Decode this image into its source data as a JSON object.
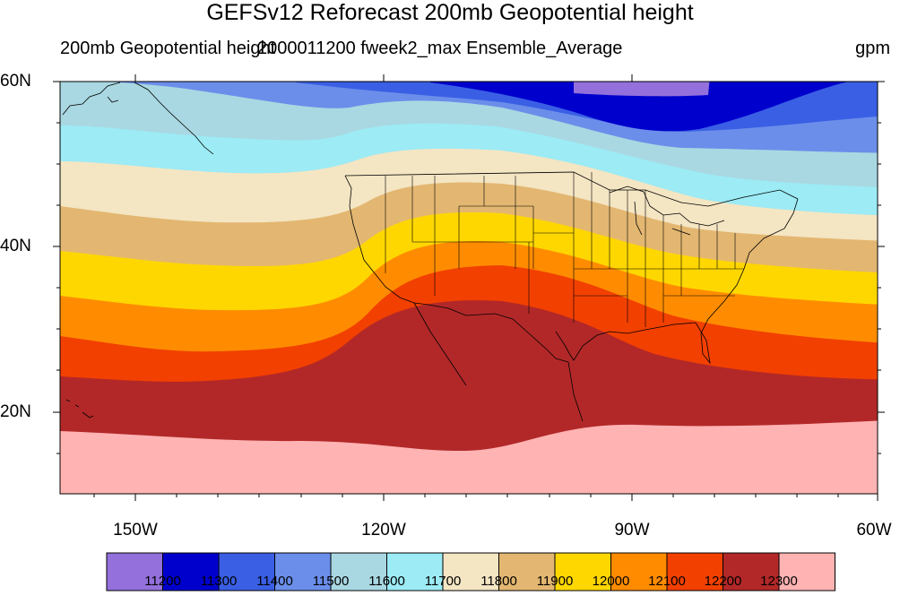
{
  "title": "GEFSv12 Reforecast 200mb Geopotential height",
  "subtitle_left": "200mb Geopotential height",
  "subtitle_center": "2000011200 fweek2_max Ensemble_Average",
  "units": "gpm",
  "lat_labels": [
    "60N",
    "40N",
    "20N"
  ],
  "lon_labels": [
    "150W",
    "120W",
    "90W",
    "60W"
  ],
  "colorbar": {
    "labels": [
      "11200",
      "11300",
      "11400",
      "11500",
      "11600",
      "11700",
      "11800",
      "11900",
      "12000",
      "12100",
      "12200",
      "12300"
    ],
    "colors": [
      "#9370DB",
      "#0000CD",
      "#3A5FE5",
      "#6B8EEA",
      "#A9D8E2",
      "#9CEBF5",
      "#F4E5C3",
      "#E3B771",
      "#FFD700",
      "#FF8C00",
      "#F24000",
      "#B22828",
      "#FFB3B3"
    ]
  }
}
